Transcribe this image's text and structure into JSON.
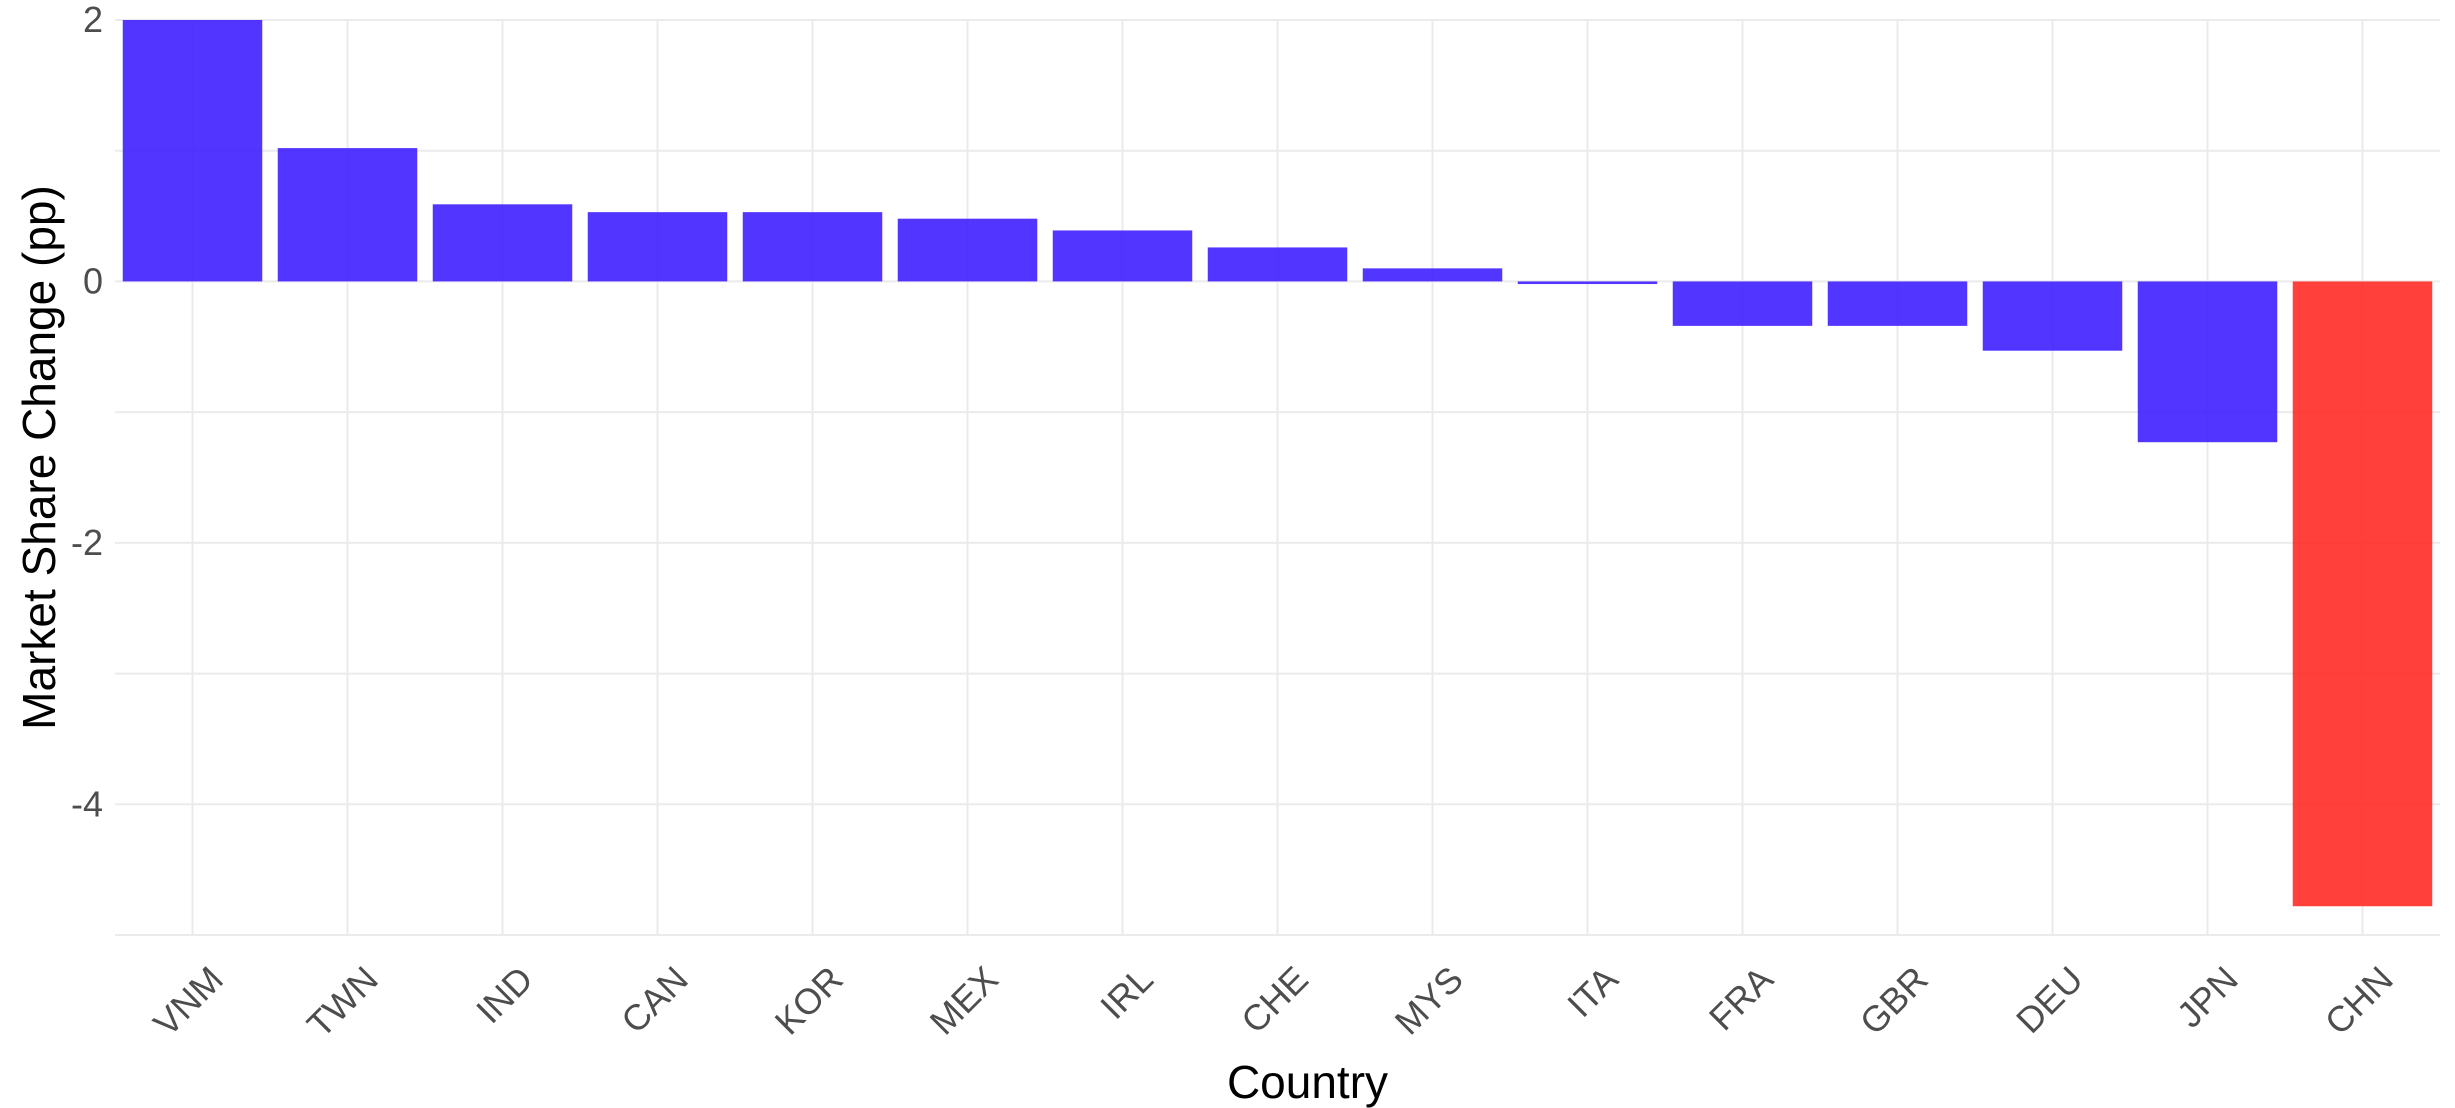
{
  "chart_data": {
    "type": "bar",
    "categories": [
      "VNM",
      "TWN",
      "IND",
      "CAN",
      "KOR",
      "MEX",
      "IRL",
      "CHE",
      "MYS",
      "ITA",
      "FRA",
      "GBR",
      "DEU",
      "JPN",
      "CHN"
    ],
    "values": [
      2.0,
      1.02,
      0.59,
      0.53,
      0.53,
      0.48,
      0.39,
      0.26,
      0.1,
      -0.02,
      -0.34,
      -0.34,
      -0.53,
      -1.23,
      -4.78
    ],
    "highlight": [
      false,
      false,
      false,
      false,
      false,
      false,
      false,
      false,
      false,
      false,
      false,
      false,
      false,
      false,
      true
    ],
    "xlabel": "Country",
    "ylabel": "Market Share Change (pp)",
    "ylim": [
      -5.0,
      2.0
    ],
    "yticks": [
      2,
      0,
      -2,
      -4
    ],
    "grid": true,
    "colors": {
      "default": "#3f1fff",
      "highlight": "#ff2b26"
    }
  }
}
